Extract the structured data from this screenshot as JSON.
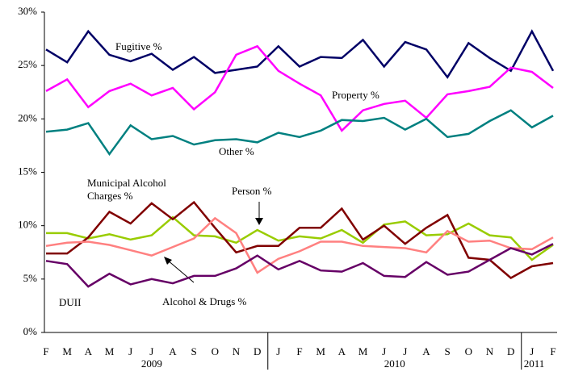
{
  "chart_data": {
    "type": "line",
    "groups": [
      {
        "label": "2009",
        "categories": [
          "F",
          "M",
          "A",
          "M",
          "J",
          "J",
          "A",
          "S",
          "O",
          "N",
          "D"
        ]
      },
      {
        "label": "2010",
        "categories": [
          "J",
          "F",
          "M",
          "A",
          "M",
          "J",
          "J",
          "A",
          "S",
          "O",
          "N",
          "D"
        ]
      },
      {
        "label": "2011",
        "categories": [
          "J",
          "F"
        ]
      }
    ],
    "ylim": [
      0,
      30
    ],
    "yticks": [
      {
        "value": 0,
        "label": "0%"
      },
      {
        "value": 5,
        "label": "5%"
      },
      {
        "value": 10,
        "label": "10%"
      },
      {
        "value": 15,
        "label": "15%"
      },
      {
        "value": 20,
        "label": "20%"
      },
      {
        "value": 25,
        "label": "25%"
      },
      {
        "value": 30,
        "label": "30%"
      }
    ],
    "series": [
      {
        "name": "Fugitive %",
        "color": "#000066",
        "values": [
          26.5,
          25.3,
          28.2,
          26.0,
          25.4,
          26.1,
          24.6,
          25.8,
          24.3,
          24.6,
          24.9,
          26.8,
          24.9,
          25.8,
          25.7,
          27.4,
          24.9,
          27.2,
          26.5,
          23.9,
          27.1,
          25.7,
          24.5,
          28.2,
          24.5
        ]
      },
      {
        "name": "Property %",
        "color": "#ff00ff",
        "values": [
          22.6,
          23.7,
          21.1,
          22.6,
          23.3,
          22.2,
          22.9,
          20.9,
          22.5,
          26.0,
          26.8,
          24.5,
          23.3,
          22.2,
          18.9,
          20.8,
          21.4,
          21.7,
          20.1,
          22.3,
          22.6,
          23.0,
          24.8,
          24.4,
          22.9
        ]
      },
      {
        "name": "Other %",
        "color": "#008080",
        "values": [
          18.8,
          19.0,
          19.6,
          16.7,
          19.4,
          18.1,
          18.4,
          17.6,
          18.0,
          18.1,
          17.8,
          18.7,
          18.3,
          18.9,
          19.9,
          19.8,
          20.1,
          19.0,
          20.0,
          18.3,
          18.6,
          19.8,
          20.8,
          19.2,
          20.3
        ]
      },
      {
        "name": "Person %",
        "color": "#99cc00",
        "values": [
          9.3,
          9.3,
          8.8,
          9.2,
          8.7,
          9.1,
          10.8,
          9.1,
          9.0,
          8.4,
          9.6,
          8.6,
          9.0,
          8.8,
          9.6,
          8.4,
          10.1,
          10.4,
          9.1,
          9.2,
          10.2,
          9.1,
          8.9,
          6.8,
          8.2
        ]
      },
      {
        "name": "Municipal Alcohol Charges %",
        "color": "#800000",
        "values": [
          7.4,
          7.4,
          8.9,
          11.3,
          10.2,
          12.1,
          10.6,
          12.2,
          9.8,
          7.5,
          8.1,
          8.1,
          9.8,
          9.8,
          11.6,
          8.7,
          10.0,
          8.3,
          9.8,
          11.0,
          7.0,
          6.8,
          5.1,
          6.2,
          6.5
        ]
      },
      {
        "name": "Alcohol & Drugs %",
        "color": "#ff8080",
        "values": [
          8.1,
          8.4,
          8.5,
          8.2,
          7.7,
          7.2,
          8.0,
          8.8,
          10.7,
          9.3,
          5.6,
          6.9,
          7.6,
          8.5,
          8.5,
          8.1,
          8.0,
          7.9,
          7.5,
          9.5,
          8.5,
          8.6,
          7.9,
          7.8,
          8.9
        ]
      },
      {
        "name": "DUII",
        "color": "#660066",
        "values": [
          6.7,
          6.4,
          4.3,
          5.5,
          4.5,
          5.0,
          4.6,
          5.3,
          5.3,
          6.0,
          7.2,
          5.9,
          6.7,
          5.8,
          5.7,
          6.5,
          5.3,
          5.2,
          6.6,
          5.4,
          5.7,
          6.8,
          7.9,
          7.3,
          8.3
        ]
      }
    ]
  }
}
